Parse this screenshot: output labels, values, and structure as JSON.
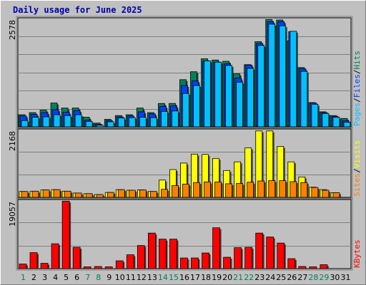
{
  "title": "Daily usage for June 2025",
  "colors": {
    "background": "#c0c0c0",
    "panel": "#c0c0c0",
    "grid": "#808080",
    "hits": "#00805c",
    "files": "#0040ff",
    "pages": "#00c0ff",
    "visits": "#ffff00",
    "sites": "#ff8000",
    "kbytes": "#ff0000",
    "weekend_day": "#00805c",
    "weekday_day": "#000000",
    "title_color": "#0000aa"
  },
  "chart_data": [
    {
      "type": "bar",
      "name": "hits-files-pages",
      "max_label": "2578",
      "ylim": [
        0,
        2578
      ],
      "x": [
        1,
        2,
        3,
        4,
        5,
        6,
        7,
        8,
        9,
        10,
        11,
        12,
        13,
        14,
        15,
        16,
        17,
        18,
        19,
        20,
        21,
        22,
        23,
        24,
        25,
        26,
        27,
        28,
        29,
        30,
        31
      ],
      "series": [
        {
          "name": "Hits",
          "color": "#00805c",
          "values": [
            290,
            340,
            400,
            570,
            450,
            450,
            230,
            90,
            180,
            270,
            290,
            450,
            340,
            560,
            560,
            1130,
            1320,
            1630,
            1600,
            1570,
            1270,
            1490,
            2040,
            2570,
            2560,
            2060,
            1420,
            580,
            360,
            270,
            200
          ]
        },
        {
          "name": "Files",
          "color": "#0040ff",
          "values": [
            260,
            300,
            340,
            410,
            350,
            390,
            160,
            60,
            150,
            240,
            260,
            360,
            310,
            490,
            500,
            990,
            1100,
            1580,
            1550,
            1510,
            1170,
            1480,
            2000,
            2520,
            2520,
            2280,
            1390,
            570,
            340,
            250,
            150
          ]
        },
        {
          "name": "Pages",
          "color": "#00c0ff",
          "values": [
            150,
            230,
            240,
            290,
            270,
            290,
            130,
            40,
            120,
            210,
            220,
            230,
            220,
            370,
            380,
            800,
            990,
            1580,
            1550,
            1470,
            1070,
            1400,
            1950,
            2460,
            2420,
            2290,
            1330,
            540,
            320,
            230,
            110
          ]
        }
      ],
      "side_labels": [
        "Pages",
        "Files",
        "Hits"
      ]
    },
    {
      "type": "bar",
      "name": "visits-sites",
      "max_label": "2168",
      "ylim": [
        0,
        2168
      ],
      "x": [
        1,
        2,
        3,
        4,
        5,
        6,
        7,
        8,
        9,
        10,
        11,
        12,
        13,
        14,
        15,
        16,
        17,
        18,
        19,
        20,
        21,
        22,
        23,
        24,
        25,
        26,
        27,
        28,
        29,
        30,
        31
      ],
      "series": [
        {
          "name": "Visits",
          "color": "#ffff00",
          "values": [
            190,
            200,
            240,
            250,
            200,
            140,
            120,
            90,
            160,
            250,
            230,
            240,
            190,
            560,
            900,
            1110,
            1400,
            1390,
            1260,
            870,
            1150,
            1600,
            2150,
            2150,
            1650,
            1150,
            660,
            330,
            250,
            150,
            0
          ]
        },
        {
          "name": "Sites",
          "color": "#ff8000",
          "values": [
            190,
            200,
            240,
            250,
            200,
            140,
            120,
            90,
            160,
            250,
            230,
            240,
            190,
            260,
            380,
            430,
            480,
            500,
            500,
            440,
            450,
            490,
            530,
            540,
            540,
            510,
            480,
            320,
            230,
            150,
            0
          ]
        }
      ],
      "side_labels": [
        "Sites",
        "Visits"
      ]
    },
    {
      "type": "bar",
      "name": "kbytes",
      "max_label": "19057",
      "ylim": [
        0,
        19057
      ],
      "x": [
        1,
        2,
        3,
        4,
        5,
        6,
        7,
        8,
        9,
        10,
        11,
        12,
        13,
        14,
        15,
        16,
        17,
        18,
        19,
        20,
        21,
        22,
        23,
        24,
        25,
        26,
        27,
        28,
        29,
        30,
        31
      ],
      "series": [
        {
          "name": "KBytes",
          "color": "#ff0000",
          "values": [
            1300,
            4500,
            1500,
            7000,
            19000,
            6000,
            500,
            600,
            500,
            2200,
            3900,
            6500,
            10000,
            8300,
            8300,
            3000,
            3000,
            4400,
            11500,
            3200,
            5900,
            6000,
            10000,
            8900,
            7200,
            2800,
            600,
            500,
            1100,
            0,
            0
          ]
        }
      ],
      "side_labels": [
        "KBytes"
      ]
    }
  ],
  "days": [
    {
      "label": "1",
      "weekend": true
    },
    {
      "label": "2",
      "weekend": false
    },
    {
      "label": "3",
      "weekend": false
    },
    {
      "label": "4",
      "weekend": false
    },
    {
      "label": "5",
      "weekend": false
    },
    {
      "label": "6",
      "weekend": false
    },
    {
      "label": "7",
      "weekend": true
    },
    {
      "label": "8",
      "weekend": true
    },
    {
      "label": "9",
      "weekend": false
    },
    {
      "label": "10",
      "weekend": false
    },
    {
      "label": "11",
      "weekend": false
    },
    {
      "label": "12",
      "weekend": false
    },
    {
      "label": "13",
      "weekend": false
    },
    {
      "label": "14",
      "weekend": true
    },
    {
      "label": "15",
      "weekend": true
    },
    {
      "label": "16",
      "weekend": false
    },
    {
      "label": "17",
      "weekend": false
    },
    {
      "label": "18",
      "weekend": false
    },
    {
      "label": "19",
      "weekend": false
    },
    {
      "label": "20",
      "weekend": false
    },
    {
      "label": "21",
      "weekend": true
    },
    {
      "label": "22",
      "weekend": true
    },
    {
      "label": "23",
      "weekend": false
    },
    {
      "label": "24",
      "weekend": false
    },
    {
      "label": "25",
      "weekend": false
    },
    {
      "label": "26",
      "weekend": false
    },
    {
      "label": "27",
      "weekend": false
    },
    {
      "label": "28",
      "weekend": true
    },
    {
      "label": "29",
      "weekend": true
    },
    {
      "label": "30",
      "weekend": false
    },
    {
      "label": "31",
      "weekend": false
    }
  ]
}
